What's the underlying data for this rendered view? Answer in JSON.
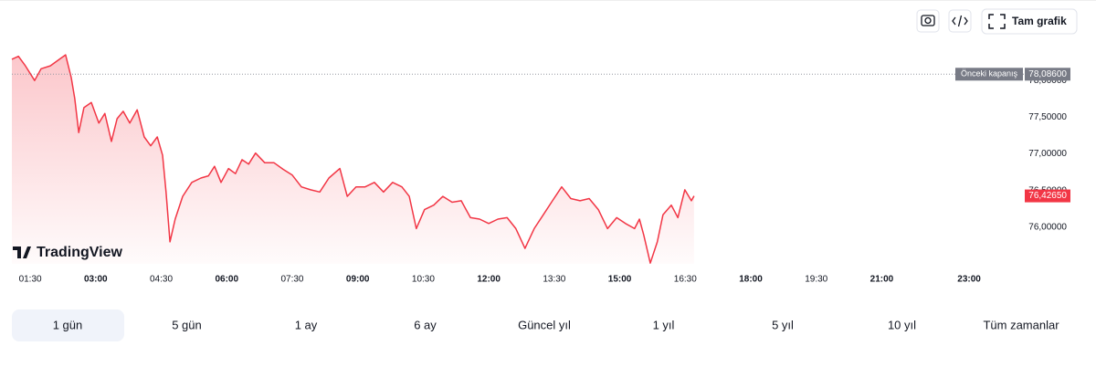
{
  "chart_data": {
    "type": "line",
    "color": "#f23645",
    "x": [
      1.08,
      1.23,
      1.39,
      1.6,
      1.75,
      1.96,
      2.17,
      2.31,
      2.44,
      2.52,
      2.61,
      2.73,
      2.9,
      3.07,
      3.21,
      3.36,
      3.49,
      3.63,
      3.78,
      3.95,
      4.11,
      4.26,
      4.41,
      4.53,
      4.61,
      4.7,
      4.82,
      4.99,
      5.2,
      5.41,
      5.58,
      5.72,
      5.87,
      6.04,
      6.2,
      6.35,
      6.5,
      6.66,
      6.87,
      7.08,
      7.29,
      7.5,
      7.71,
      7.92,
      8.13,
      8.34,
      8.59,
      8.76,
      8.96,
      9.17,
      9.38,
      9.59,
      9.8,
      10.01,
      10.18,
      10.34,
      10.53,
      10.74,
      10.95,
      11.16,
      11.37,
      11.58,
      11.79,
      12.0,
      12.21,
      12.42,
      12.62,
      12.83,
      13.04,
      13.25,
      13.46,
      13.67,
      13.88,
      14.09,
      14.3,
      14.51,
      14.72,
      14.93,
      15.13,
      15.34,
      15.45,
      15.55,
      15.7,
      15.86,
      15.99,
      16.18,
      16.33,
      16.49,
      16.64,
      16.7
    ],
    "values": [
      78.29,
      78.33,
      78.2,
      78.0,
      78.16,
      78.2,
      78.29,
      78.35,
      78.04,
      77.75,
      77.29,
      77.63,
      77.7,
      77.42,
      77.55,
      77.17,
      77.48,
      77.58,
      77.42,
      77.6,
      77.23,
      77.11,
      77.23,
      76.98,
      76.48,
      75.8,
      76.11,
      76.42,
      76.61,
      76.67,
      76.7,
      76.83,
      76.61,
      76.8,
      76.73,
      76.92,
      76.86,
      77.01,
      76.88,
      76.88,
      76.79,
      76.71,
      76.55,
      76.51,
      76.48,
      76.67,
      76.8,
      76.42,
      76.55,
      76.55,
      76.61,
      76.48,
      76.61,
      76.55,
      76.42,
      75.98,
      76.24,
      76.3,
      76.42,
      76.34,
      76.36,
      76.13,
      76.11,
      76.05,
      76.11,
      76.13,
      75.98,
      75.71,
      75.98,
      76.17,
      76.36,
      76.55,
      76.39,
      76.36,
      76.39,
      76.24,
      75.98,
      76.13,
      76.05,
      75.98,
      76.11,
      75.89,
      75.51,
      75.8,
      76.17,
      76.3,
      76.13,
      76.51,
      76.36,
      76.4265
    ],
    "xlim": [
      1.08,
      23.5
    ],
    "xticks": [
      {
        "value": 1.5,
        "label": "01:30"
      },
      {
        "value": 3,
        "label": "03:00"
      },
      {
        "value": 4.5,
        "label": "04:30"
      },
      {
        "value": 6,
        "label": "06:00"
      },
      {
        "value": 7.5,
        "label": "07:30"
      },
      {
        "value": 9,
        "label": "09:00"
      },
      {
        "value": 10.5,
        "label": "10:30"
      },
      {
        "value": 12,
        "label": "12:00"
      },
      {
        "value": 13.5,
        "label": "13:30"
      },
      {
        "value": 15,
        "label": "15:00"
      },
      {
        "value": 16.5,
        "label": "16:30"
      },
      {
        "value": 18,
        "label": "18:00"
      },
      {
        "value": 19.5,
        "label": "19:30"
      },
      {
        "value": 21,
        "label": "21:00"
      },
      {
        "value": 23,
        "label": "23:00"
      }
    ],
    "ylim": [
      75.5,
      78.6
    ],
    "yticks": [
      {
        "value": 76,
        "label": "76,00000"
      },
      {
        "value": 76.5,
        "label": "76,50000"
      },
      {
        "value": 77,
        "label": "77,00000"
      },
      {
        "value": 77.5,
        "label": "77,50000"
      },
      {
        "value": 78,
        "label": "78,00000"
      }
    ],
    "previous_close": {
      "name": "Önceki kapanış",
      "value": 78.086,
      "label": "78,08600"
    },
    "last_price": {
      "value": 76.4265,
      "label": "76,42650"
    }
  },
  "logo": "TradingView",
  "toolbar": {
    "fullscreen": "Tam grafik"
  },
  "ranges": [
    "1 gün",
    "5 gün",
    "1 ay",
    "6 ay",
    "Güncel yıl",
    "1 yıl",
    "5 yıl",
    "10 yıl",
    "Tüm zamanlar"
  ],
  "active_range": 0
}
